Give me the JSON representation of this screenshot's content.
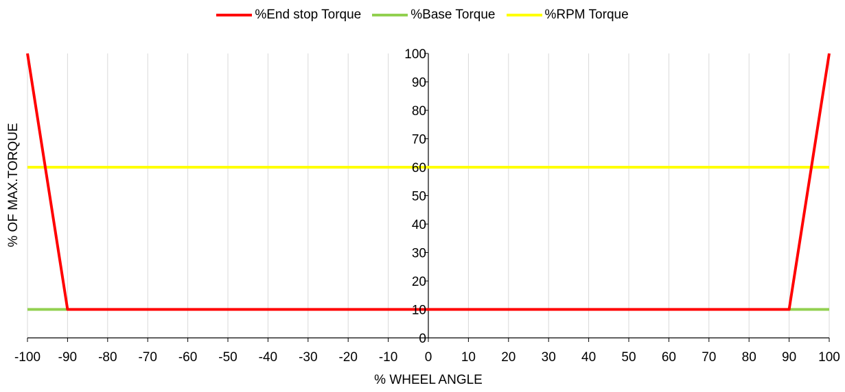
{
  "chart_data": {
    "type": "line",
    "xlabel": "% WHEEL ANGLE",
    "ylabel": "% OF MAX.TORQUE",
    "xlim": [
      -100,
      100
    ],
    "ylim": [
      0,
      100
    ],
    "x_ticks": [
      "-100",
      "-90",
      "-80",
      "-70",
      "-60",
      "-50",
      "-40",
      "-30",
      "-20",
      "-10",
      "0",
      "10",
      "20",
      "30",
      "40",
      "50",
      "60",
      "70",
      "80",
      "90",
      "100"
    ],
    "y_ticks": [
      "0",
      "10",
      "20",
      "30",
      "40",
      "50",
      "60",
      "70",
      "80",
      "90",
      "100"
    ],
    "grid": "vertical",
    "legend_position": "top",
    "series": [
      {
        "name": "%End stop Torque",
        "color": "#ff0000",
        "x": [
          -100,
          -90,
          90,
          100
        ],
        "y": [
          100,
          10,
          10,
          100
        ]
      },
      {
        "name": "%Base Torque",
        "color": "#92d050",
        "x": [
          -100,
          100
        ],
        "y": [
          10,
          10
        ]
      },
      {
        "name": "%RPM Torque",
        "color": "#ffff00",
        "x": [
          -100,
          100
        ],
        "y": [
          60,
          60
        ]
      }
    ]
  }
}
